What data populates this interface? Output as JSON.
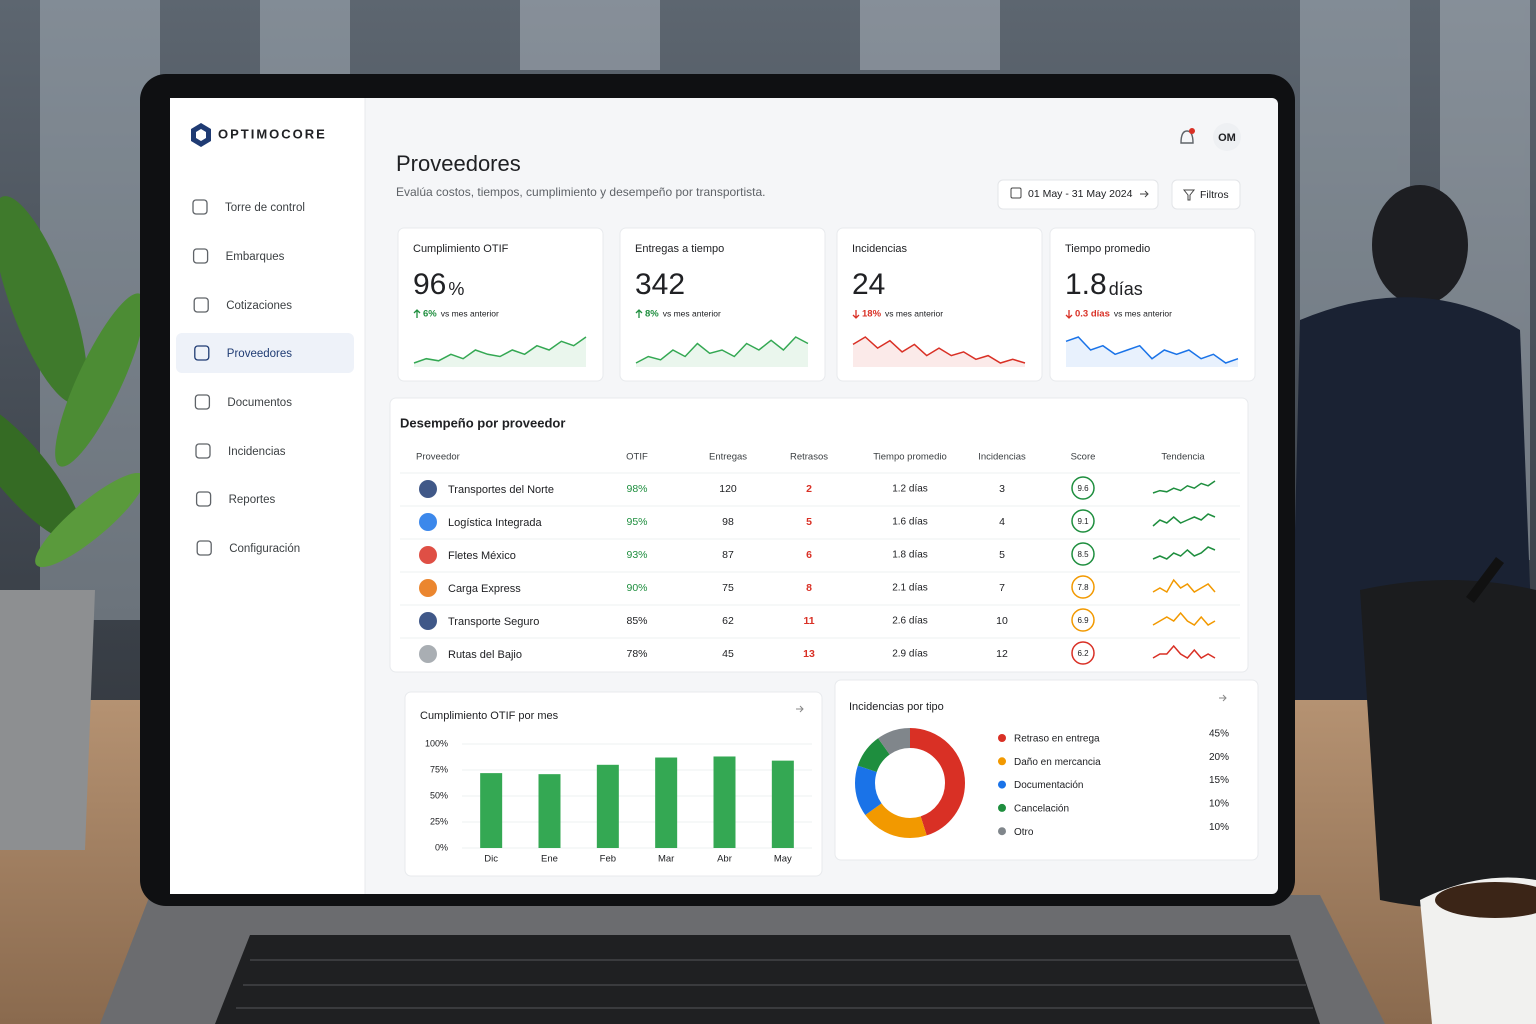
{
  "brand": "OPTIMOCORE",
  "nav": {
    "items": [
      "Torre de control",
      "Embarques",
      "Cotizaciones",
      "Proveedores",
      "Documentos",
      "Incidencias",
      "Reportes",
      "Configuración"
    ],
    "active": 3
  },
  "header": {
    "title": "Proveedores",
    "subtitle": "Evalúa costos, tiempos, cumplimiento y desempeño por transportista.",
    "date_range": "01 May - 31 May 2024",
    "filters": "Filtros",
    "avatar": "OM"
  },
  "kpis": [
    {
      "label": "Cumplimiento OTIF",
      "value": 96,
      "unit": "%",
      "delta": "6%",
      "note": "vs mes anterior",
      "direction": "up",
      "delta_color": "#1e8e3e",
      "color": "#34a853",
      "trend": [
        3,
        4,
        3.5,
        5,
        4,
        6,
        5,
        4.5,
        6,
        5,
        7,
        6,
        8,
        7,
        9
      ]
    },
    {
      "label": "Entregas a tiempo",
      "value": 342,
      "delta": "8%",
      "note": "vs mes anterior",
      "direction": "up",
      "delta_color": "#1e8e3e",
      "color": "#34a853",
      "trend": [
        3,
        4,
        3.5,
        5,
        4,
        6,
        4.5,
        5,
        4,
        6,
        5,
        6.5,
        5,
        7,
        6
      ]
    },
    {
      "label": "Incidencias",
      "value": 24,
      "delta": "18%",
      "note": "vs mes anterior",
      "direction": "down",
      "delta_color": "#d93025",
      "color": "#d93025",
      "trend": [
        7,
        9,
        6,
        8,
        5,
        7,
        4,
        6,
        4,
        5,
        3,
        4,
        2,
        3,
        2
      ]
    },
    {
      "label": "Tiempo promedio",
      "value": 1.8,
      "unit": "días",
      "delta": "0.3 días",
      "note": "vs mes anterior",
      "direction": "down",
      "delta_color": "#d93025",
      "color": "#1a73e8",
      "trend": [
        7,
        8,
        5,
        6,
        4,
        5,
        6,
        3,
        5,
        4,
        5,
        3,
        4,
        2,
        3
      ]
    }
  ],
  "table": {
    "title": "Desempeño por proveedor",
    "columns": [
      "Proveedor",
      "OTIF",
      "Entregas",
      "Retrasos",
      "Tiempo promedio",
      "Incidencias",
      "Score",
      "Tendencia"
    ],
    "delay_color": "#d93025",
    "rows": [
      {
        "provider": "Transportes del Norte",
        "otif": "98%",
        "otif_color": "#1e8e3e",
        "deliveries": 120,
        "delays": 2,
        "avg_time": "1.2 días",
        "incidents": 3,
        "score": 9.6,
        "score_color": "#1e8e3e",
        "trend": [
          2,
          3,
          2.5,
          4,
          3,
          5,
          4,
          6,
          5,
          7
        ]
      },
      {
        "provider": "Logística Integrada",
        "otif": "95%",
        "otif_color": "#1e8e3e",
        "deliveries": 98,
        "delays": 5,
        "avg_time": "1.6 días",
        "incidents": 4,
        "score": 9.1,
        "score_color": "#1e8e3e",
        "trend": [
          2,
          4,
          3,
          5,
          3,
          4,
          5,
          4,
          6,
          5
        ]
      },
      {
        "provider": "Fletes México",
        "otif": "93%",
        "otif_color": "#1e8e3e",
        "deliveries": 87,
        "delays": 6,
        "avg_time": "1.8 días",
        "incidents": 5,
        "score": 8.5,
        "score_color": "#1e8e3e",
        "trend": [
          2,
          3,
          2,
          4,
          3,
          5,
          3,
          4,
          6,
          5
        ]
      },
      {
        "provider": "Carga Express",
        "otif": "90%",
        "otif_color": "#1e8e3e",
        "deliveries": 75,
        "delays": 8,
        "avg_time": "2.1 días",
        "incidents": 7,
        "score": 7.8,
        "score_color": "#f29900",
        "trend": [
          2,
          3,
          2,
          5,
          3,
          4,
          2,
          3,
          4,
          2
        ]
      },
      {
        "provider": "Transporte Seguro",
        "otif": "85%",
        "otif_color": "#202124",
        "deliveries": 62,
        "delays": 11,
        "avg_time": "2.6 días",
        "incidents": 10,
        "score": 6.9,
        "score_color": "#f29900",
        "trend": [
          2,
          3,
          4,
          3,
          5,
          3,
          2,
          4,
          2,
          3
        ]
      },
      {
        "provider": "Rutas del Bajio",
        "otif": "78%",
        "otif_color": "#202124",
        "deliveries": 45,
        "delays": 13,
        "avg_time": "2.9 días",
        "incidents": 12,
        "score": 6.2,
        "score_color": "#d93025",
        "trend": [
          2,
          3,
          3,
          5,
          3,
          2,
          4,
          2,
          3,
          2
        ]
      }
    ]
  },
  "bar_chart": {
    "type": "bar",
    "title": "Cumplimiento OTIF por mes",
    "categories": [
      "Dic",
      "Ene",
      "Feb",
      "Mar",
      "Abr",
      "May"
    ],
    "values": [
      72,
      71,
      80,
      87,
      88,
      84
    ],
    "color": "#34a853",
    "ylim": [
      0,
      100
    ],
    "yticks": [
      {
        "value": 0,
        "label": "0%"
      },
      {
        "value": 25,
        "label": "25%"
      },
      {
        "value": 50,
        "label": "50%"
      },
      {
        "value": 75,
        "label": "75%"
      },
      {
        "value": 100,
        "label": "100%"
      }
    ],
    "grid": true
  },
  "donut_chart": {
    "type": "donut",
    "title": "Incidencias por tipo",
    "categories": [
      "Retraso en entrega",
      "Daño en mercancia",
      "Documentación",
      "Cancelación",
      "Otro"
    ],
    "values": [
      45,
      20,
      15,
      10,
      10
    ],
    "value_labels": [
      "45%",
      "20%",
      "15%",
      "10%",
      "10%"
    ],
    "colors": [
      "#d93025",
      "#f29900",
      "#1a73e8",
      "#1e8e3e",
      "#80868b"
    ]
  }
}
